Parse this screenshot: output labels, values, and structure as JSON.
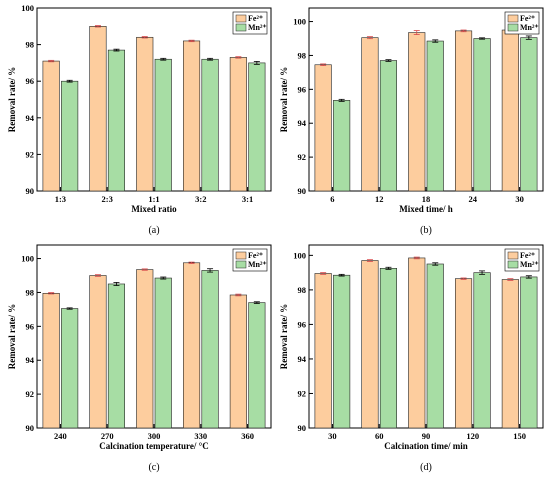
{
  "colors": {
    "fe": "#FDCD9E",
    "mn": "#A7DDA4",
    "bar_edge": "#222222",
    "err_fe": "#D8484A",
    "err_mn": "#000000"
  },
  "chart_data": [
    {
      "type": "bar",
      "panel_label": "(a)",
      "xlabel": "Mixed ratio",
      "ylabel": "Removal rate/ %",
      "ylim": [
        90,
        100
      ],
      "yticks": [
        "90",
        "92",
        "94",
        "96",
        "98",
        "100"
      ],
      "categories": [
        "1:3",
        "2:3",
        "1:1",
        "3:2",
        "3:1"
      ],
      "legend": [
        "Fe²⁺",
        "Mn²⁺"
      ],
      "legend_position": "top-right",
      "series": [
        {
          "name": "Fe²⁺",
          "values": [
            97.1,
            99.0,
            98.4,
            98.2,
            97.3
          ],
          "errors": [
            0.04,
            0.04,
            0.04,
            0.04,
            0.04
          ]
        },
        {
          "name": "Mn²⁺",
          "values": [
            96.0,
            97.7,
            97.2,
            97.2,
            97.0
          ],
          "errors": [
            0.05,
            0.05,
            0.05,
            0.05,
            0.08
          ]
        }
      ]
    },
    {
      "type": "bar",
      "panel_label": "(b)",
      "xlabel": "Mixed time/ h",
      "ylabel": "Removal rate/ %",
      "ylim": [
        90,
        100.8
      ],
      "yticks": [
        "90",
        "92",
        "94",
        "96",
        "98",
        "100"
      ],
      "categories": [
        "6",
        "12",
        "18",
        "24",
        "30"
      ],
      "legend": [
        "Fe²⁺",
        "Mn²⁺"
      ],
      "legend_position": "top-right",
      "series": [
        {
          "name": "Fe²⁺",
          "values": [
            97.45,
            99.05,
            99.35,
            99.45,
            99.5
          ],
          "errors": [
            0.05,
            0.06,
            0.12,
            0.05,
            0.05
          ]
        },
        {
          "name": "Mn²⁺",
          "values": [
            95.35,
            97.7,
            98.85,
            99.0,
            99.05
          ],
          "errors": [
            0.06,
            0.05,
            0.07,
            0.04,
            0.1
          ]
        }
      ]
    },
    {
      "type": "bar",
      "panel_label": "(c)",
      "xlabel": "Calcination temperature/ °C",
      "ylabel": "Removal rate/ %",
      "ylim": [
        90,
        100.8
      ],
      "yticks": [
        "90",
        "92",
        "94",
        "96",
        "98",
        "100"
      ],
      "categories": [
        "240",
        "270",
        "300",
        "330",
        "360"
      ],
      "legend": [
        "Fe²⁺",
        "Mn²⁺"
      ],
      "legend_position": "top-right",
      "series": [
        {
          "name": "Fe²⁺",
          "values": [
            97.95,
            99.0,
            99.35,
            99.75,
            97.85
          ],
          "errors": [
            0.04,
            0.05,
            0.04,
            0.04,
            0.05
          ]
        },
        {
          "name": "Mn²⁺",
          "values": [
            97.05,
            98.5,
            98.85,
            99.3,
            97.4
          ],
          "errors": [
            0.04,
            0.09,
            0.06,
            0.1,
            0.05
          ]
        }
      ]
    },
    {
      "type": "bar",
      "panel_label": "(d)",
      "xlabel": "Calcination time/ min",
      "ylabel": "Removal rate/ %",
      "ylim": [
        90,
        100.6
      ],
      "yticks": [
        "90",
        "92",
        "94",
        "96",
        "98",
        "100"
      ],
      "categories": [
        "30",
        "60",
        "90",
        "120",
        "150"
      ],
      "legend": [
        "Fe²⁺",
        "Mn²⁺"
      ],
      "legend_position": "top-right",
      "series": [
        {
          "name": "Fe²⁺",
          "values": [
            98.95,
            99.7,
            99.85,
            98.65,
            98.6
          ],
          "errors": [
            0.05,
            0.05,
            0.05,
            0.04,
            0.05
          ]
        },
        {
          "name": "Mn²⁺",
          "values": [
            98.85,
            99.25,
            99.5,
            99.0,
            98.75
          ],
          "errors": [
            0.05,
            0.06,
            0.07,
            0.1,
            0.07
          ]
        }
      ]
    }
  ]
}
